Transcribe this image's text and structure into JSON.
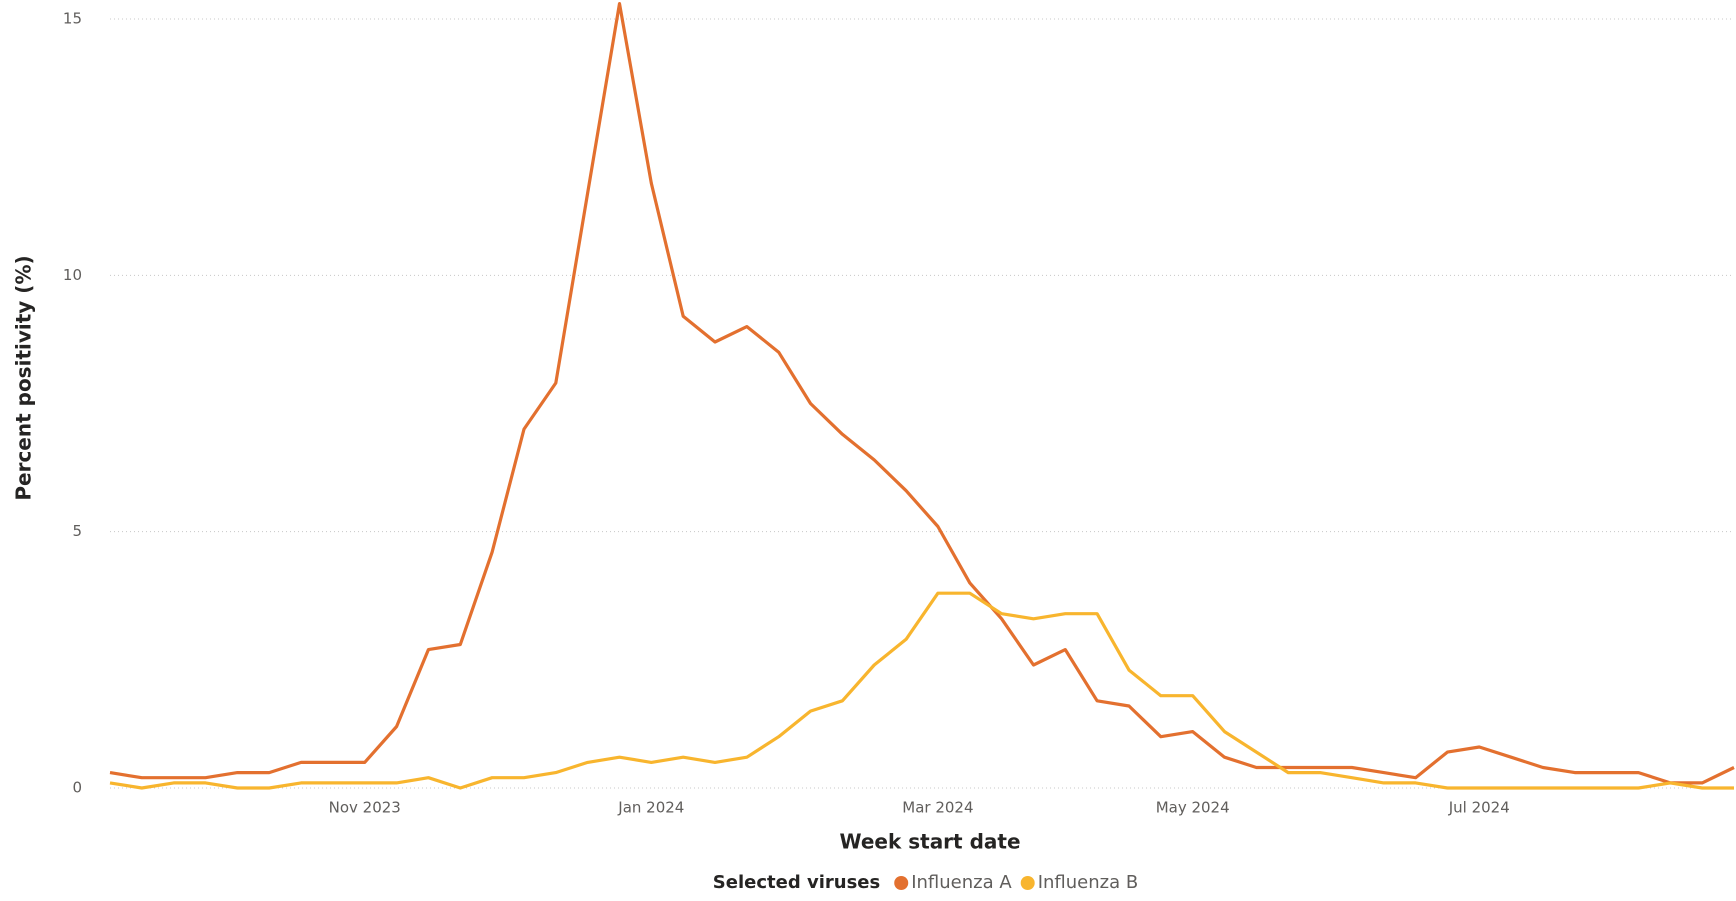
{
  "chart_data": {
    "type": "line",
    "x_label": "Week start date",
    "y_label": "Percent positivity (%)",
    "legend_title": "Selected viruses",
    "legend": "bottom",
    "grid": true,
    "ylim": [
      0,
      15
    ],
    "yticks": [
      0,
      5,
      10,
      15
    ],
    "categories": [
      null,
      null,
      null,
      null,
      null,
      null,
      null,
      null,
      "Nov 2023",
      null,
      null,
      null,
      null,
      null,
      null,
      null,
      null,
      "Jan 2024",
      null,
      null,
      null,
      null,
      null,
      null,
      null,
      null,
      "Mar 2024",
      null,
      null,
      null,
      null,
      null,
      null,
      null,
      "May 2024",
      null,
      null,
      null,
      null,
      null,
      null,
      null,
      null,
      "Jul 2024",
      null,
      null,
      null,
      null,
      null,
      null,
      null,
      null
    ],
    "series": [
      {
        "name": "Influenza A",
        "color": "#e3702f",
        "values": [
          0.3,
          0.2,
          0.2,
          0.2,
          0.3,
          0.3,
          0.5,
          0.5,
          0.5,
          1.2,
          2.7,
          2.8,
          4.6,
          7.0,
          7.9,
          11.6,
          15.3,
          11.8,
          9.2,
          8.7,
          9.0,
          8.5,
          7.5,
          6.9,
          6.4,
          5.8,
          5.1,
          4.0,
          3.3,
          2.4,
          2.7,
          1.7,
          1.6,
          1.0,
          1.1,
          0.6,
          0.4,
          0.4,
          0.4,
          0.4,
          0.3,
          0.2,
          0.7,
          0.8,
          0.6,
          0.4,
          0.3,
          0.3,
          0.3,
          0.1,
          0.1,
          0.4
        ]
      },
      {
        "name": "Influenza B",
        "color": "#f8b52e",
        "values": [
          0.1,
          0.0,
          0.1,
          0.1,
          0.0,
          0.0,
          0.1,
          0.1,
          0.1,
          0.1,
          0.2,
          0.0,
          0.2,
          0.2,
          0.3,
          0.5,
          0.6,
          0.5,
          0.6,
          0.5,
          0.6,
          1.0,
          1.5,
          1.7,
          2.4,
          2.9,
          3.8,
          3.8,
          3.4,
          3.3,
          3.4,
          3.4,
          2.3,
          1.8,
          1.8,
          1.1,
          0.7,
          0.3,
          0.3,
          0.2,
          0.1,
          0.1,
          0.0,
          0.0,
          0.0,
          0.0,
          0.0,
          0.0,
          0.0,
          0.1,
          0.0,
          0.0
        ]
      }
    ]
  }
}
